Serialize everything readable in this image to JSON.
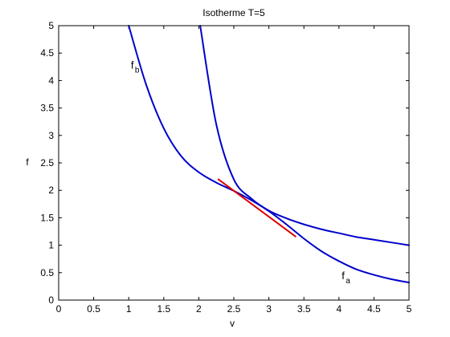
{
  "chart_data": {
    "type": "line",
    "title": "Isotherme T=5",
    "xlabel": "v",
    "ylabel": "f",
    "xlim": [
      0,
      5
    ],
    "ylim": [
      0,
      5
    ],
    "xticks": [
      "0",
      "0.5",
      "1",
      "1.5",
      "2",
      "2.5",
      "3",
      "3.5",
      "4",
      "4.5",
      "5"
    ],
    "yticks": [
      "0",
      "0.5",
      "1",
      "1.5",
      "2",
      "2.5",
      "3",
      "3.5",
      "4",
      "4.5",
      "5"
    ],
    "grid": false,
    "legend": "none",
    "series": [
      {
        "color": "#0000cc",
        "x": [
          1.0,
          1.25,
          1.5,
          1.75,
          2.0,
          2.25,
          2.5,
          2.75,
          3.0,
          3.25,
          3.5,
          3.75,
          4.0,
          4.25,
          4.5,
          4.75,
          5.0
        ],
        "y": [
          5.0,
          3.92,
          3.13,
          2.62,
          2.33,
          2.14,
          1.99,
          1.82,
          1.62,
          1.38,
          1.12,
          0.89,
          0.71,
          0.56,
          0.46,
          0.38,
          0.32
        ]
      },
      {
        "color": "#0000cc",
        "x": [
          2.02,
          2.25,
          2.5,
          2.75,
          3.0,
          3.25,
          3.5,
          3.75,
          4.0,
          4.25,
          4.5,
          4.75,
          5.0
        ],
        "y": [
          5.0,
          3.2,
          2.2,
          1.85,
          1.63,
          1.49,
          1.38,
          1.29,
          1.22,
          1.15,
          1.1,
          1.05,
          1.0
        ]
      },
      {
        "color": "#dd0000",
        "x": [
          2.28,
          3.38
        ],
        "y": [
          2.2,
          1.16
        ]
      }
    ],
    "annotations": [
      {
        "text": "f",
        "sub": "b",
        "x": 1.03,
        "y": 4.22
      },
      {
        "text": "f",
        "sub": "a",
        "x": 4.04,
        "y": 0.38
      }
    ]
  }
}
